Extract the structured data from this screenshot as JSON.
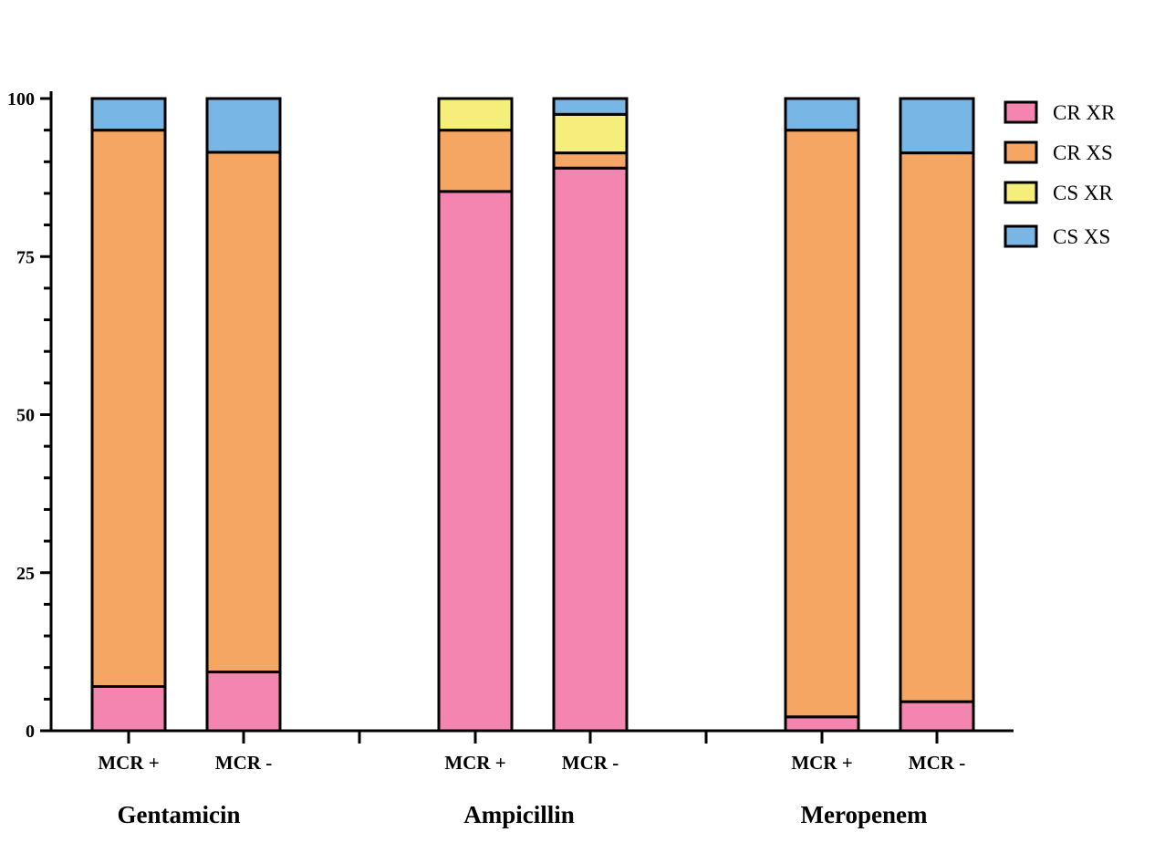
{
  "chart_data": {
    "type": "bar",
    "stacked": true,
    "groups": [
      {
        "label": "Gentamicin",
        "bars": [
          {
            "label": "MCR +",
            "values": [
              7,
              88,
              0,
              5
            ]
          },
          {
            "label": "MCR -",
            "values": [
              9.3,
              82.2,
              0,
              8.5
            ]
          }
        ]
      },
      {
        "label": "Ampicillin",
        "bars": [
          {
            "label": "MCR +",
            "values": [
              85.3,
              9.7,
              5,
              0
            ]
          },
          {
            "label": "MCR -",
            "values": [
              89,
              2.4,
              6.1,
              2.5
            ]
          }
        ]
      },
      {
        "label": "Meropenem",
        "bars": [
          {
            "label": "MCR +",
            "values": [
              2.2,
              92.8,
              0,
              5
            ]
          },
          {
            "label": "MCR -",
            "values": [
              4.6,
              86.8,
              0,
              8.6
            ]
          }
        ]
      }
    ],
    "series": [
      {
        "name": "CR XR",
        "color": "#f484b0"
      },
      {
        "name": "CR XS",
        "color": "#f6a663"
      },
      {
        "name": "CS XR",
        "color": "#f5ee7b"
      },
      {
        "name": "CS XS",
        "color": "#78b6e5"
      }
    ],
    "yticks": [
      0,
      25,
      50,
      75,
      100
    ],
    "ylim": [
      0,
      100
    ],
    "legend_position": "top-right",
    "grid": false
  }
}
